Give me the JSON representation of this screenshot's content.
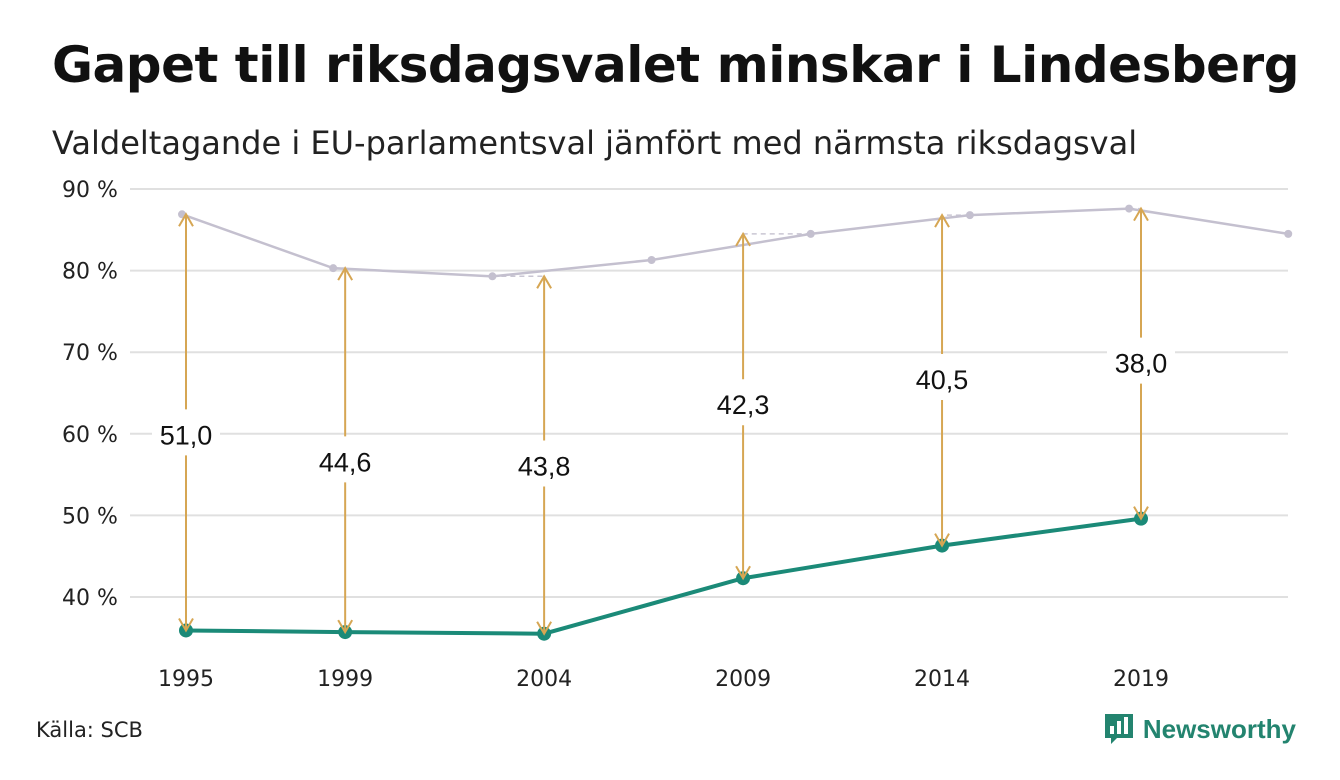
{
  "title": "Gapet till riksdagsvalet minskar i Lindesberg",
  "subtitle": "Valdeltagande i EU-parlamentsval jämfört med närmsta riksdagsval",
  "source": "Källa: SCB",
  "brand": "Newsworthy",
  "colors": {
    "eu_line": "#1b8a78",
    "riksdag_line": "#c4c0cf",
    "arrow": "#d6a653",
    "grid": "#e0e0e0"
  },
  "chart_data": {
    "type": "line",
    "x_ticks": [
      "1995",
      "1999",
      "2004",
      "2009",
      "2014",
      "2019"
    ],
    "y_ticks": [
      "40 %",
      "50 %",
      "60 %",
      "70 %",
      "80 %",
      "90 %"
    ],
    "ylim": [
      33,
      91
    ],
    "grid": true,
    "series": [
      {
        "key": "riksdag",
        "x": [
          1994.9,
          1998.7,
          2002.7,
          2006.7,
          2010.7,
          2014.7,
          2018.7,
          2022.7
        ],
        "values": [
          86.9,
          80.3,
          79.3,
          81.3,
          84.5,
          86.8,
          87.6,
          84.5
        ]
      },
      {
        "key": "eu",
        "x": [
          1995,
          1999,
          2004,
          2009,
          2014,
          2019
        ],
        "values": [
          35.9,
          35.7,
          35.5,
          42.3,
          46.3,
          49.6
        ]
      }
    ],
    "gaps": [
      {
        "year": 1995,
        "label": "51,0",
        "top": 86.9,
        "bottom": 35.9,
        "label_y": 59.8
      },
      {
        "year": 1999,
        "label": "44,6",
        "top": 80.3,
        "bottom": 35.7,
        "label_y": 56.5
      },
      {
        "year": 2004,
        "label": "43,8",
        "top": 79.3,
        "bottom": 35.5,
        "label_y": 56.0
      },
      {
        "year": 2009,
        "label": "42,3",
        "top": 84.5,
        "bottom": 42.3,
        "label_y": 63.5
      },
      {
        "year": 2014,
        "label": "40,5",
        "top": 86.8,
        "bottom": 46.3,
        "label_y": 66.6
      },
      {
        "year": 2019,
        "label": "38,0",
        "top": 87.6,
        "bottom": 49.6,
        "label_y": 68.6
      }
    ]
  }
}
